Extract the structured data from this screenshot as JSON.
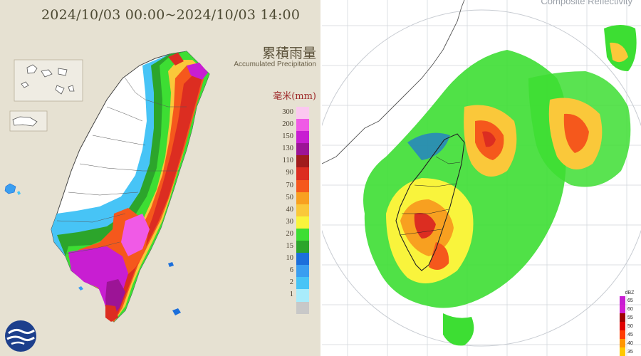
{
  "left_panel": {
    "date_range": "2024/10/03 00:00~2024/10/03 14:00",
    "title_zh": "累積雨量",
    "title_en": "Accumulated Precipitation",
    "unit": "毫米(mm)",
    "legend": [
      {
        "label": "300",
        "color": "#fbc8f0"
      },
      {
        "label": "200",
        "color": "#f05ae6"
      },
      {
        "label": "150",
        "color": "#c81ed2"
      },
      {
        "label": "130",
        "color": "#9c1496"
      },
      {
        "label": "110",
        "color": "#a01c1c"
      },
      {
        "label": "90",
        "color": "#dc2d21"
      },
      {
        "label": "70",
        "color": "#f5581c"
      },
      {
        "label": "50",
        "color": "#f8a020"
      },
      {
        "label": "40",
        "color": "#fac83a"
      },
      {
        "label": "30",
        "color": "#f9f43c"
      },
      {
        "label": "20",
        "color": "#3dde33"
      },
      {
        "label": "15",
        "color": "#2ca52b"
      },
      {
        "label": "10",
        "color": "#1c6fdb"
      },
      {
        "label": "6",
        "color": "#3a9ef0"
      },
      {
        "label": "2",
        "color": "#47c4f6"
      },
      {
        "label": "1",
        "color": "#a8ecfb"
      },
      {
        "label": "",
        "color": "#c8c8c8"
      }
    ]
  },
  "right_panel": {
    "title": "Composite Reflectivity",
    "legend_unit": "dBZ",
    "legend": [
      {
        "label": "65",
        "color": "#c81ed2"
      },
      {
        "label": "60",
        "color": "#d21ed2"
      },
      {
        "label": "55",
        "color": "#a00000"
      },
      {
        "label": "50",
        "color": "#e00000"
      },
      {
        "label": "45",
        "color": "#ff3c00"
      },
      {
        "label": "40",
        "color": "#ff9600"
      },
      {
        "label": "35",
        "color": "#ffc800"
      }
    ]
  },
  "colors": {
    "left_background": "#e6e1d2",
    "taiwan_dry": "#ffffff",
    "sea_blue": "#2a7fd0"
  }
}
